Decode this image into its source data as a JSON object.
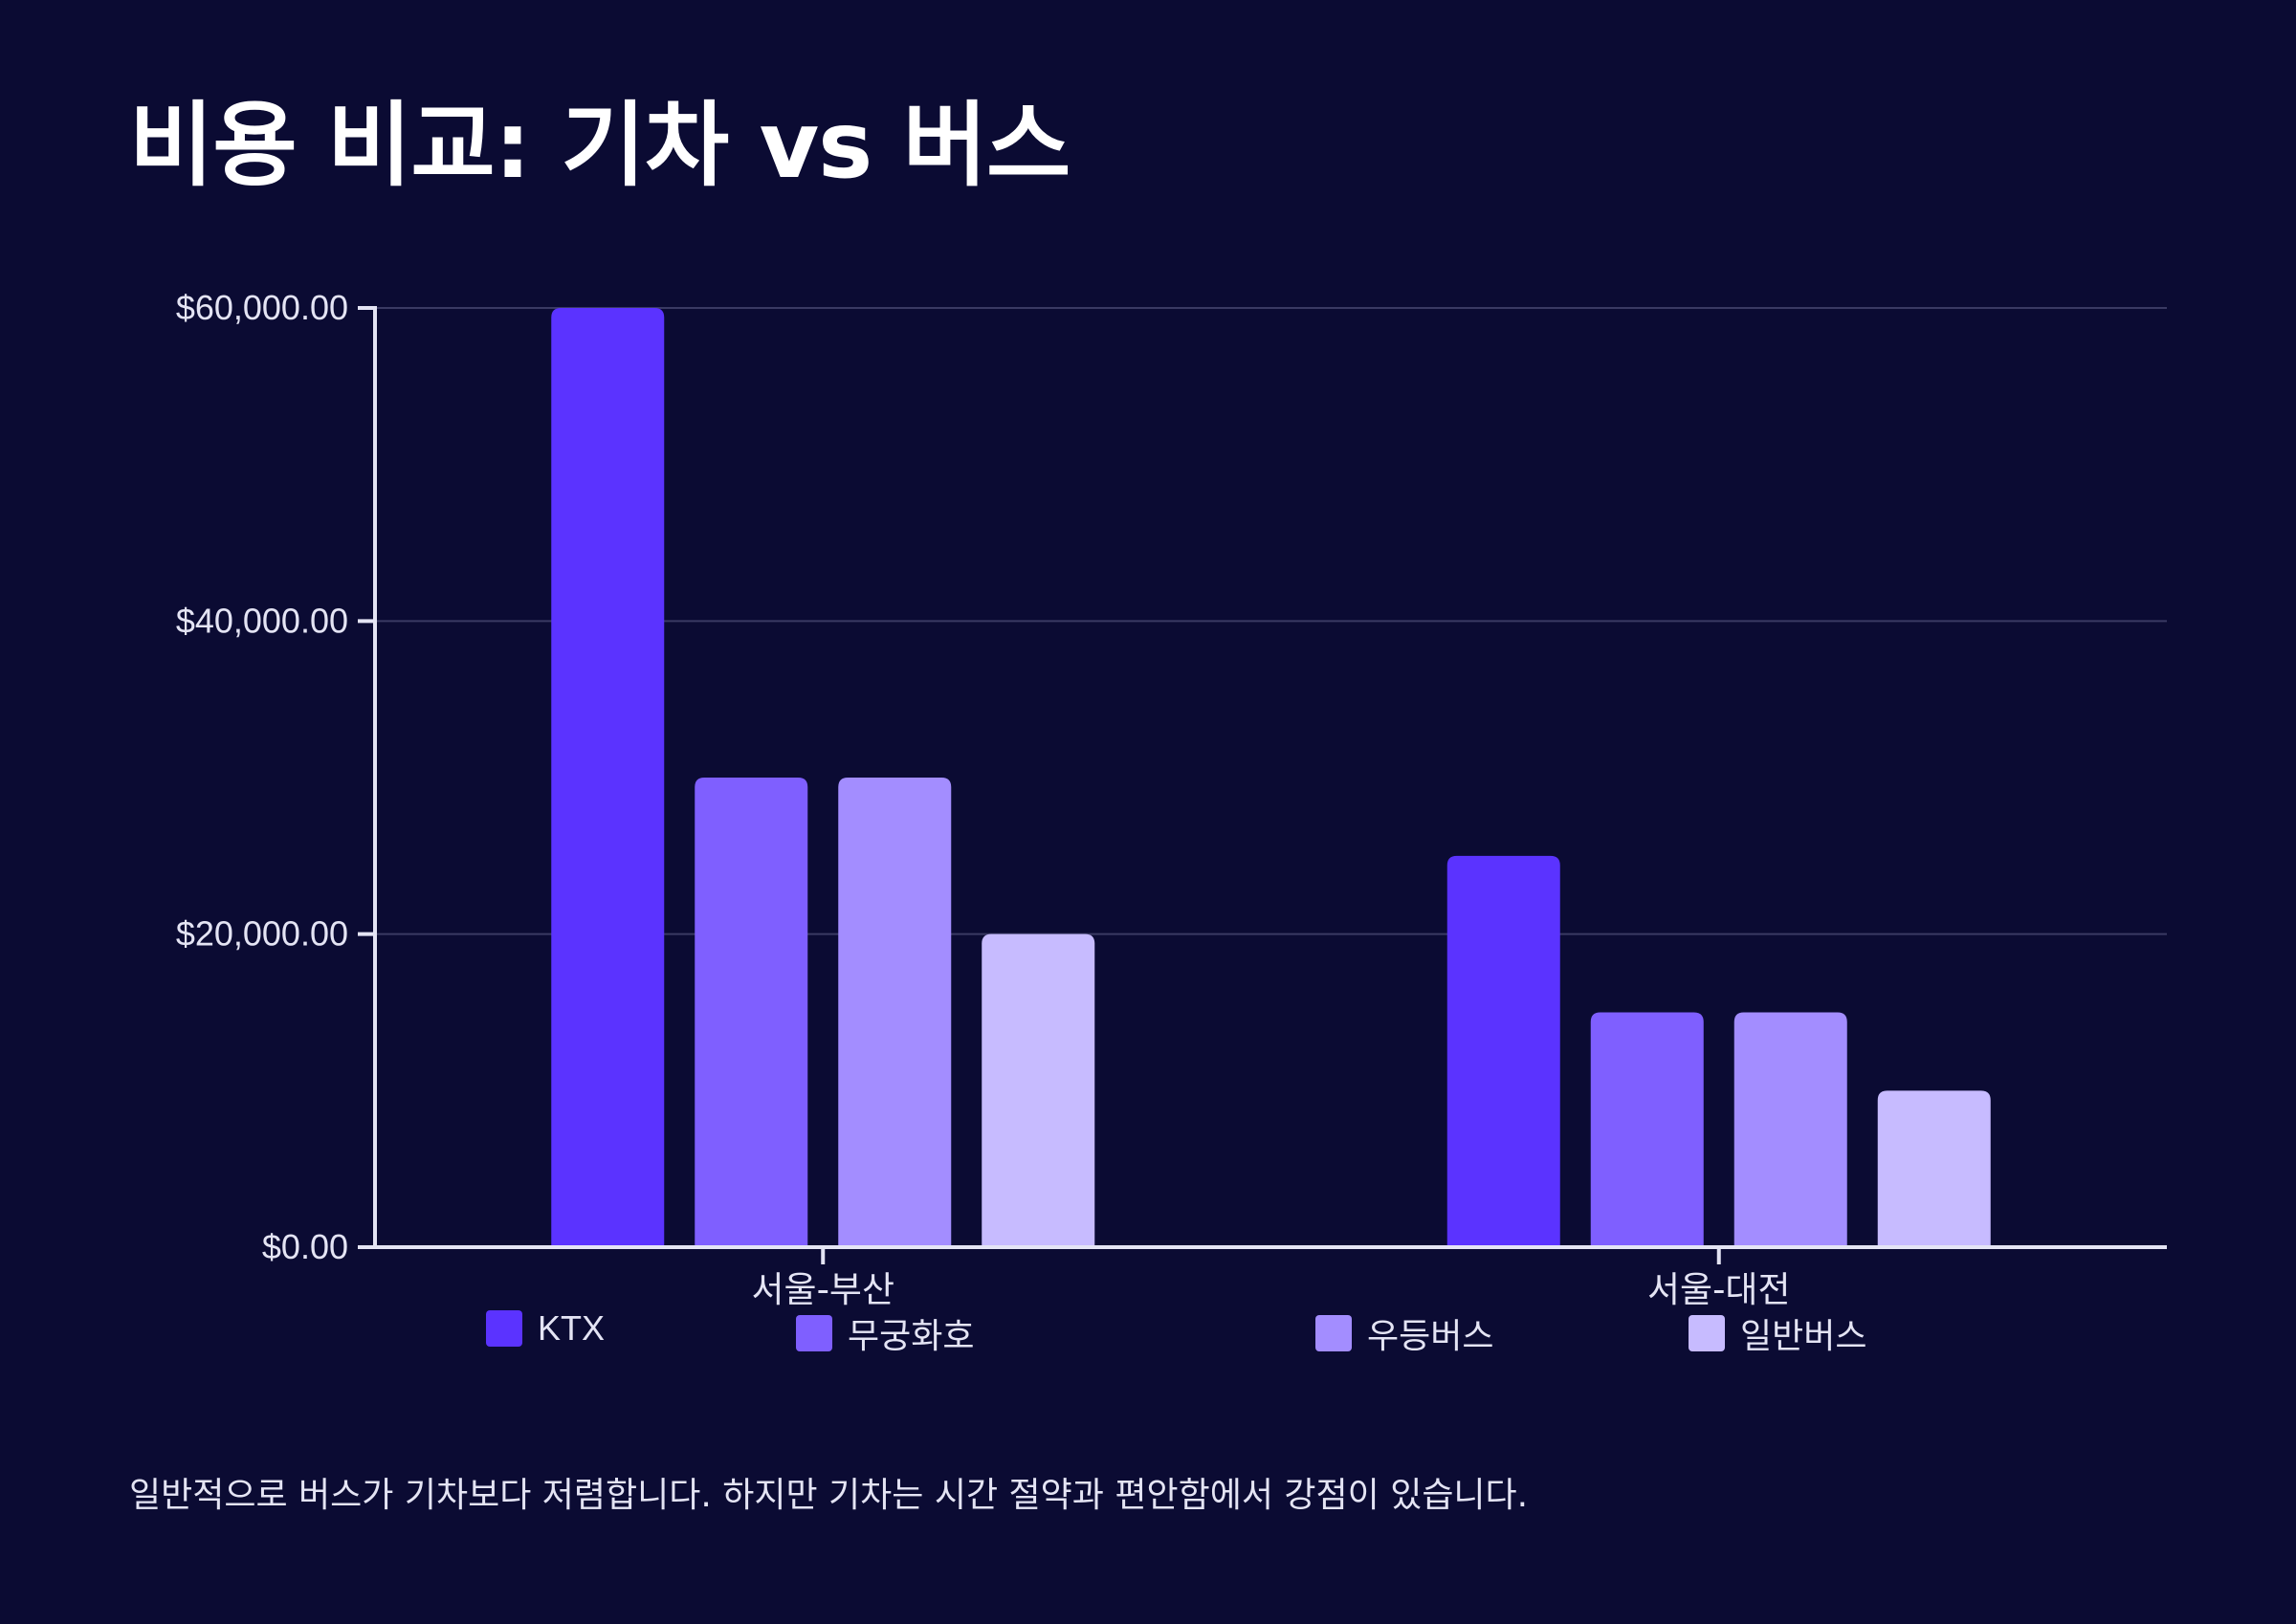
{
  "title": "비용 비교: 기차 vs 버스",
  "note": "일반적으로 버스가 기차보다 저렴합니다. 하지만 기차는 시간 절약과 편안함에서 강점이 있습니다.",
  "chart_data": {
    "type": "bar",
    "title": "비용 비교: 기차 vs 버스",
    "xlabel": "",
    "ylabel": "",
    "categories": [
      "서울-부산",
      "서울-대전"
    ],
    "series": [
      {
        "name": "KTX",
        "values": [
          60000,
          25000
        ],
        "color": "#5b33ff"
      },
      {
        "name": "무궁화호",
        "values": [
          30000,
          15000
        ],
        "color": "#7f5fff"
      },
      {
        "name": "우등버스",
        "values": [
          30000,
          15000
        ],
        "color": "#a38dff"
      },
      {
        "name": "일반버스",
        "values": [
          20000,
          10000
        ],
        "color": "#c7bbff"
      }
    ],
    "ylim": [
      0,
      60000
    ],
    "yticks": [
      0,
      20000,
      40000,
      60000
    ],
    "ytick_labels": [
      "$0.00",
      "$20,000.00",
      "$40,000.00",
      "$60,000.00"
    ],
    "grid": true,
    "legend": "bottom"
  }
}
